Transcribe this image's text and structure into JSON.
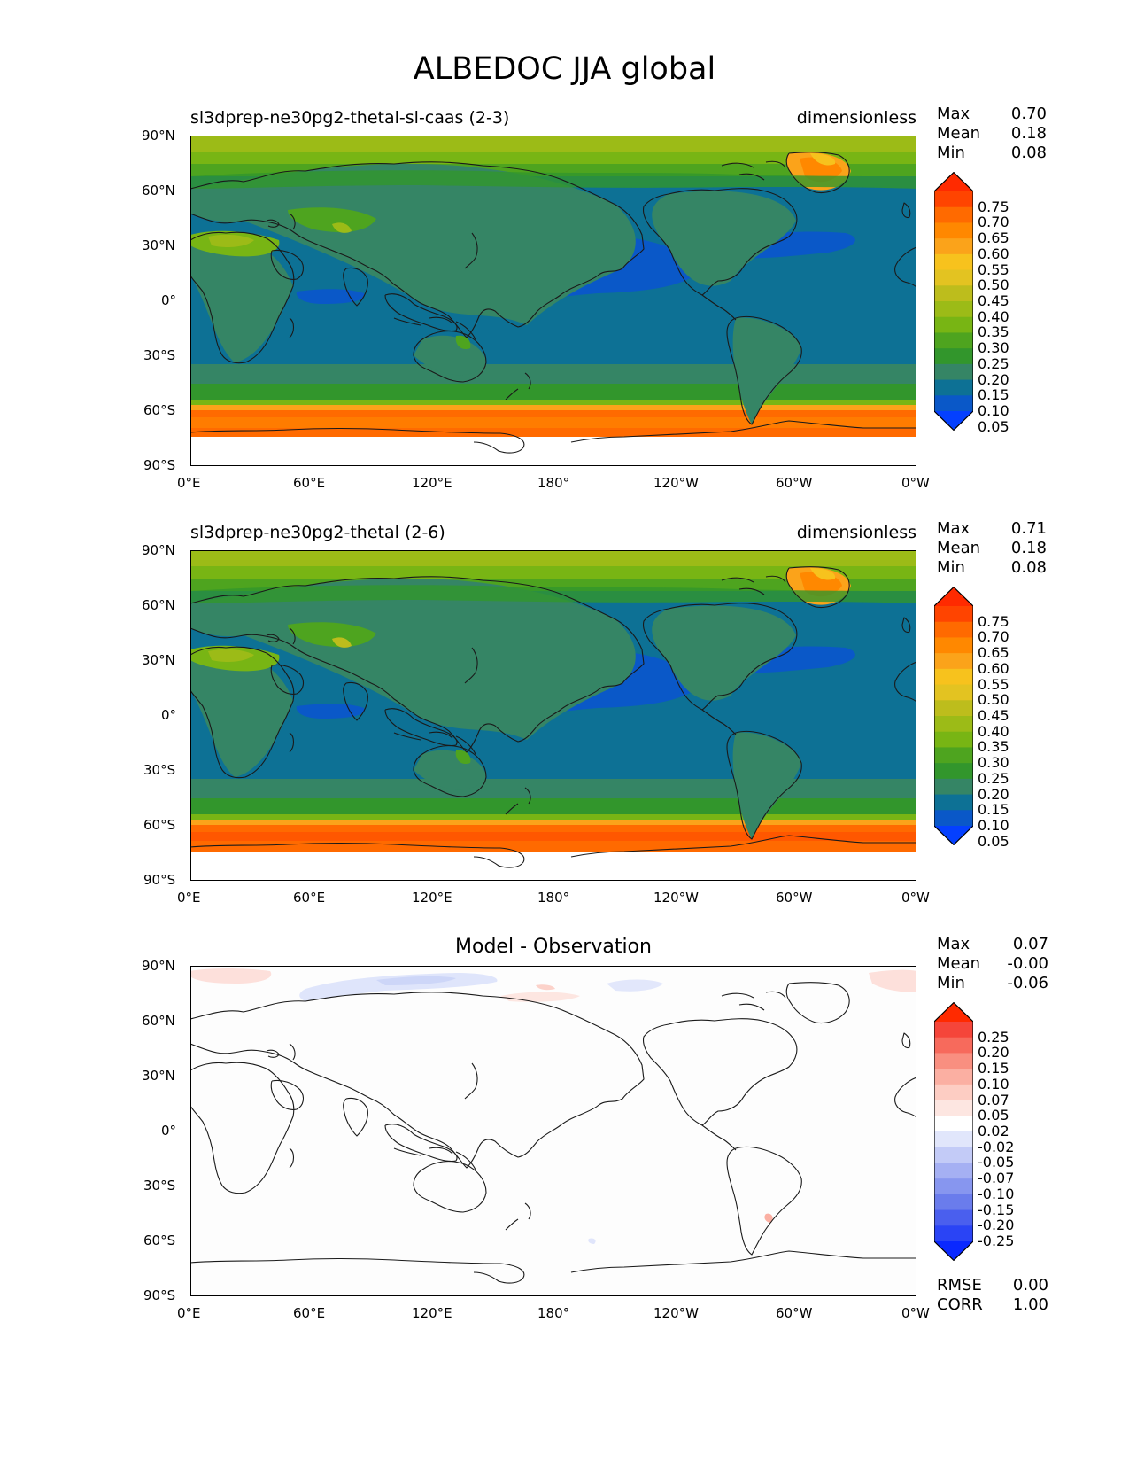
{
  "page_title": "ALBEDOC JJA global",
  "panels": [
    {
      "title": "sl3dprep-ne30pg2-thetal-sl-caas (2-3)",
      "units": "dimensionless",
      "stats": [
        {
          "label": "Max",
          "value": "0.70"
        },
        {
          "label": "Mean",
          "value": "0.18"
        },
        {
          "label": "Min",
          "value": "0.08"
        }
      ]
    },
    {
      "title": "sl3dprep-ne30pg2-thetal (2-6)",
      "units": "dimensionless",
      "stats": [
        {
          "label": "Max",
          "value": "0.71"
        },
        {
          "label": "Mean",
          "value": "0.18"
        },
        {
          "label": "Min",
          "value": "0.08"
        }
      ]
    },
    {
      "title": "Model - Observation",
      "units": "",
      "stats": [
        {
          "label": "Max",
          "value": "0.07"
        },
        {
          "label": "Mean",
          "value": "-0.00"
        },
        {
          "label": "Min",
          "value": "-0.06"
        }
      ],
      "extra_stats": [
        {
          "label": "RMSE",
          "value": "0.00"
        },
        {
          "label": "CORR",
          "value": "1.00"
        }
      ]
    }
  ],
  "axes": {
    "x_ticks": [
      "0°E",
      "60°E",
      "120°E",
      "180°",
      "120°W",
      "60°W",
      "0°W"
    ],
    "y_ticks": [
      "90°N",
      "60°N",
      "30°N",
      "0°",
      "30°S",
      "60°S",
      "90°S"
    ]
  },
  "colorbars": {
    "field": {
      "labels": [
        "0.75",
        "0.70",
        "0.65",
        "0.60",
        "0.55",
        "0.50",
        "0.45",
        "0.40",
        "0.35",
        "0.30",
        "0.25",
        "0.20",
        "0.15",
        "0.10",
        "0.05"
      ],
      "colors_top_to_bottom": [
        "#ff2a00",
        "#ff4400",
        "#ff6a00",
        "#ff8800",
        "#fba31a",
        "#f7c21d",
        "#e3c321",
        "#bdbd1c",
        "#9cbb17",
        "#78b514",
        "#4ea41f",
        "#32962c",
        "#358565",
        "#0d7195",
        "#0a58c8",
        "#0440ff"
      ]
    },
    "diff": {
      "labels": [
        "0.25",
        "0.20",
        "0.15",
        "0.10",
        "0.07",
        "0.05",
        "0.02",
        "-0.02",
        "-0.05",
        "-0.07",
        "-0.10",
        "-0.15",
        "-0.20",
        "-0.25"
      ],
      "colors_top_to_bottom": [
        "#ff2a00",
        "#f5453a",
        "#f76a5c",
        "#f98f80",
        "#fbafa2",
        "#fdcdc3",
        "#fde6e1",
        "#ffffff",
        "#e1e6fb",
        "#c3cbf7",
        "#a5b0f3",
        "#8796ef",
        "#6a7cec",
        "#4a5fee",
        "#2a44f5",
        "#0a28ff"
      ]
    },
    "diff_labels_note": ""
  },
  "chart_data": [
    {
      "type": "heatmap",
      "title": "sl3dprep-ne30pg2-thetal-sl-caas (2-3)",
      "variable": "ALBEDOC",
      "season": "JJA",
      "units": "dimensionless",
      "x_range": [
        0,
        360
      ],
      "y_range": [
        -90,
        90
      ],
      "color_levels": [
        0.05,
        0.1,
        0.15,
        0.2,
        0.25,
        0.3,
        0.35,
        0.4,
        0.45,
        0.5,
        0.55,
        0.6,
        0.65,
        0.7,
        0.75
      ],
      "max": 0.7,
      "mean": 0.18,
      "min": 0.08
    },
    {
      "type": "heatmap",
      "title": "sl3dprep-ne30pg2-thetal (2-6)",
      "variable": "ALBEDOC",
      "season": "JJA",
      "units": "dimensionless",
      "x_range": [
        0,
        360
      ],
      "y_range": [
        -90,
        90
      ],
      "color_levels": [
        0.05,
        0.1,
        0.15,
        0.2,
        0.25,
        0.3,
        0.35,
        0.4,
        0.45,
        0.5,
        0.55,
        0.6,
        0.65,
        0.7,
        0.75
      ],
      "max": 0.71,
      "mean": 0.18,
      "min": 0.08
    },
    {
      "type": "heatmap",
      "title": "Model - Observation",
      "variable": "ALBEDOC",
      "season": "JJA",
      "x_range": [
        0,
        360
      ],
      "y_range": [
        -90,
        90
      ],
      "color_levels": [
        -0.25,
        -0.2,
        -0.15,
        -0.1,
        -0.07,
        -0.05,
        -0.02,
        0.02,
        0.05,
        0.07,
        0.1,
        0.15,
        0.2,
        0.25
      ],
      "max": 0.07,
      "mean": -0.0,
      "min": -0.06,
      "rmse": 0.0,
      "corr": 1.0
    }
  ]
}
